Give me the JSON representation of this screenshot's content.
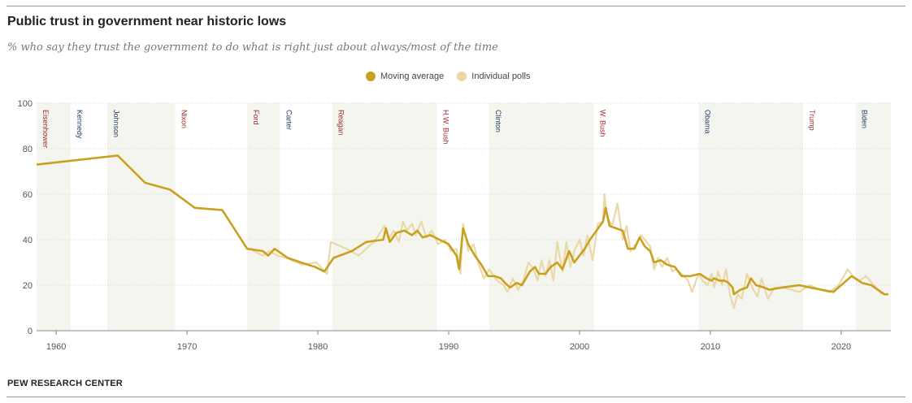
{
  "title": "Public trust in government near historic lows",
  "subtitle": "% who say they trust the government to do what is right just about always/most of the time",
  "source": "PEW RESEARCH CENTER",
  "colors": {
    "moving_average": "#C9A020",
    "individual_polls": "#EAD9A8",
    "shade": "#F5F5EF",
    "republican": "#A3282C",
    "democrat": "#1F3A5F"
  },
  "legend": {
    "moving_average": "Moving average",
    "individual_polls": "Individual polls"
  },
  "chart_data": {
    "type": "line",
    "xlim": [
      1958.5,
      2023.8
    ],
    "ylim": [
      0,
      100
    ],
    "yticks": [
      0,
      20,
      40,
      60,
      80,
      100
    ],
    "xticks": [
      1960,
      1970,
      1980,
      1990,
      2000,
      2010,
      2020
    ],
    "grid": true,
    "legend_placement": "top-center",
    "presidents": [
      {
        "name": "Eisenhower",
        "start": 1958.5,
        "end": 1961.1,
        "party": "R",
        "shaded": true
      },
      {
        "name": "Kennedy",
        "start": 1961.1,
        "end": 1963.9,
        "party": "D",
        "shaded": false
      },
      {
        "name": "Johnson",
        "start": 1963.9,
        "end": 1969.1,
        "party": "D",
        "shaded": true
      },
      {
        "name": "Nixon",
        "start": 1969.1,
        "end": 1974.6,
        "party": "R",
        "shaded": false
      },
      {
        "name": "Ford",
        "start": 1974.6,
        "end": 1977.1,
        "party": "R",
        "shaded": true
      },
      {
        "name": "Carter",
        "start": 1977.1,
        "end": 1981.1,
        "party": "D",
        "shaded": false
      },
      {
        "name": "Reagan",
        "start": 1981.1,
        "end": 1989.1,
        "party": "R",
        "shaded": true
      },
      {
        "name": "H.W. Bush",
        "start": 1989.1,
        "end": 1993.1,
        "party": "R",
        "shaded": false
      },
      {
        "name": "Clinton",
        "start": 1993.1,
        "end": 2001.1,
        "party": "D",
        "shaded": true
      },
      {
        "name": "W. Bush",
        "start": 2001.1,
        "end": 2009.1,
        "party": "R",
        "shaded": false
      },
      {
        "name": "Obama",
        "start": 2009.1,
        "end": 2017.1,
        "party": "D",
        "shaded": true
      },
      {
        "name": "Trump",
        "start": 2017.1,
        "end": 2021.1,
        "party": "R",
        "shaded": false
      },
      {
        "name": "Biden",
        "start": 2021.1,
        "end": 2023.8,
        "party": "D",
        "shaded": true
      }
    ],
    "series": [
      {
        "name": "Moving average",
        "points": [
          [
            1958.5,
            73
          ],
          [
            1964.7,
            77
          ],
          [
            1966.8,
            65
          ],
          [
            1968.7,
            62
          ],
          [
            1970.6,
            54
          ],
          [
            1972.7,
            53
          ],
          [
            1974.6,
            36
          ],
          [
            1975.8,
            35
          ],
          [
            1976.2,
            33
          ],
          [
            1976.7,
            36
          ],
          [
            1977.7,
            32
          ],
          [
            1978.7,
            30
          ],
          [
            1979.8,
            28
          ],
          [
            1980.5,
            26
          ],
          [
            1981.2,
            32
          ],
          [
            1982.6,
            35
          ],
          [
            1983.7,
            39
          ],
          [
            1985.0,
            40
          ],
          [
            1985.2,
            45
          ],
          [
            1985.5,
            39
          ],
          [
            1986.0,
            43
          ],
          [
            1986.6,
            44
          ],
          [
            1987.2,
            42
          ],
          [
            1987.6,
            44
          ],
          [
            1988.0,
            41
          ],
          [
            1988.6,
            42
          ],
          [
            1989.3,
            40
          ],
          [
            1990.0,
            38
          ],
          [
            1990.6,
            33
          ],
          [
            1990.8,
            27
          ],
          [
            1991.1,
            45
          ],
          [
            1991.5,
            38
          ],
          [
            1992.0,
            33
          ],
          [
            1992.5,
            29
          ],
          [
            1993.0,
            24
          ],
          [
            1993.5,
            24
          ],
          [
            1994.0,
            23
          ],
          [
            1994.3,
            21
          ],
          [
            1994.7,
            19
          ],
          [
            1995.2,
            21
          ],
          [
            1995.6,
            20
          ],
          [
            1996.2,
            26
          ],
          [
            1996.6,
            28
          ],
          [
            1996.9,
            25
          ],
          [
            1997.4,
            25
          ],
          [
            1997.8,
            28
          ],
          [
            1998.3,
            30
          ],
          [
            1998.7,
            27
          ],
          [
            1999.2,
            35
          ],
          [
            1999.6,
            30
          ],
          [
            2000.0,
            33
          ],
          [
            2000.4,
            36
          ],
          [
            2000.8,
            40
          ],
          [
            2001.3,
            44
          ],
          [
            2001.8,
            48
          ],
          [
            2002.0,
            54
          ],
          [
            2002.3,
            46
          ],
          [
            2002.8,
            45
          ],
          [
            2003.3,
            44
          ],
          [
            2003.7,
            36
          ],
          [
            2004.2,
            36
          ],
          [
            2004.6,
            41
          ],
          [
            2005.0,
            37
          ],
          [
            2005.4,
            35
          ],
          [
            2005.7,
            30
          ],
          [
            2006.2,
            31
          ],
          [
            2006.7,
            29
          ],
          [
            2007.3,
            28
          ],
          [
            2007.8,
            24
          ],
          [
            2008.5,
            24
          ],
          [
            2009.2,
            25
          ],
          [
            2009.7,
            23
          ],
          [
            2010.1,
            22
          ],
          [
            2010.3,
            23
          ],
          [
            2010.7,
            22
          ],
          [
            2011.1,
            22
          ],
          [
            2011.4,
            21
          ],
          [
            2011.7,
            19
          ],
          [
            2011.8,
            16
          ],
          [
            2012.3,
            18
          ],
          [
            2012.8,
            19
          ],
          [
            2013.1,
            23
          ],
          [
            2013.5,
            20
          ],
          [
            2014.1,
            19
          ],
          [
            2014.5,
            18
          ],
          [
            2015.5,
            19
          ],
          [
            2016.8,
            20
          ],
          [
            2017.6,
            19
          ],
          [
            2018.5,
            18
          ],
          [
            2019.4,
            17
          ],
          [
            2020.2,
            21
          ],
          [
            2020.8,
            24
          ],
          [
            2021.6,
            21
          ],
          [
            2022.3,
            20
          ],
          [
            2023.3,
            16
          ],
          [
            2023.6,
            16
          ]
        ]
      },
      {
        "name": "Individual polls",
        "points": [
          [
            1974.8,
            36
          ],
          [
            1975.8,
            33
          ],
          [
            1976.3,
            35
          ],
          [
            1976.9,
            33
          ],
          [
            1977.6,
            32
          ],
          [
            1978.8,
            29
          ],
          [
            1979.9,
            30
          ],
          [
            1980.7,
            25
          ],
          [
            1981.0,
            39
          ],
          [
            1982.2,
            36
          ],
          [
            1983.1,
            33
          ],
          [
            1984.3,
            39
          ],
          [
            1985.1,
            46
          ],
          [
            1985.4,
            40
          ],
          [
            1985.8,
            44
          ],
          [
            1986.2,
            39
          ],
          [
            1986.5,
            48
          ],
          [
            1986.8,
            44
          ],
          [
            1987.2,
            47
          ],
          [
            1987.5,
            42
          ],
          [
            1987.9,
            48
          ],
          [
            1988.3,
            41
          ],
          [
            1988.7,
            44
          ],
          [
            1989.2,
            38
          ],
          [
            1989.7,
            40
          ],
          [
            1990.2,
            35
          ],
          [
            1990.6,
            36
          ],
          [
            1990.9,
            25
          ],
          [
            1991.1,
            47
          ],
          [
            1991.5,
            35
          ],
          [
            1991.9,
            38
          ],
          [
            1992.3,
            29
          ],
          [
            1992.7,
            23
          ],
          [
            1993.1,
            27
          ],
          [
            1993.7,
            22
          ],
          [
            1994.2,
            20
          ],
          [
            1994.5,
            17
          ],
          [
            1994.9,
            23
          ],
          [
            1995.3,
            18
          ],
          [
            1995.7,
            22
          ],
          [
            1996.1,
            30
          ],
          [
            1996.5,
            27
          ],
          [
            1996.8,
            22
          ],
          [
            1997.1,
            31
          ],
          [
            1997.4,
            24
          ],
          [
            1997.7,
            31
          ],
          [
            1998.0,
            22
          ],
          [
            1998.3,
            39
          ],
          [
            1998.7,
            26
          ],
          [
            1999.0,
            39
          ],
          [
            1999.3,
            28
          ],
          [
            1999.6,
            35
          ],
          [
            2000.0,
            40
          ],
          [
            2000.3,
            33
          ],
          [
            2000.6,
            42
          ],
          [
            2001.0,
            31
          ],
          [
            2001.4,
            47
          ],
          [
            2001.8,
            48
          ],
          [
            2001.9,
            60
          ],
          [
            2002.1,
            50
          ],
          [
            2002.5,
            46
          ],
          [
            2002.9,
            56
          ],
          [
            2003.3,
            40
          ],
          [
            2003.6,
            46
          ],
          [
            2003.9,
            35
          ],
          [
            2004.3,
            38
          ],
          [
            2004.7,
            42
          ],
          [
            2005.0,
            40
          ],
          [
            2005.4,
            37
          ],
          [
            2005.7,
            27
          ],
          [
            2006.0,
            32
          ],
          [
            2006.3,
            28
          ],
          [
            2006.7,
            32
          ],
          [
            2007.1,
            26
          ],
          [
            2007.4,
            27
          ],
          [
            2007.8,
            25
          ],
          [
            2008.3,
            22
          ],
          [
            2008.6,
            17
          ],
          [
            2009.1,
            25
          ],
          [
            2009.4,
            22
          ],
          [
            2009.8,
            20
          ],
          [
            2010.1,
            25
          ],
          [
            2010.3,
            19
          ],
          [
            2010.6,
            26
          ],
          [
            2010.9,
            20
          ],
          [
            2011.2,
            27
          ],
          [
            2011.5,
            16
          ],
          [
            2011.8,
            10
          ],
          [
            2012.1,
            16
          ],
          [
            2012.4,
            14
          ],
          [
            2012.8,
            25
          ],
          [
            2013.2,
            19
          ],
          [
            2013.6,
            15
          ],
          [
            2013.9,
            23
          ],
          [
            2014.4,
            14
          ],
          [
            2014.9,
            19
          ],
          [
            2015.6,
            19
          ],
          [
            2016.8,
            17
          ],
          [
            2017.6,
            20
          ],
          [
            2018.4,
            18
          ],
          [
            2019.1,
            17
          ],
          [
            2019.8,
            20
          ],
          [
            2020.5,
            27
          ],
          [
            2020.9,
            24
          ],
          [
            2021.4,
            22
          ],
          [
            2021.9,
            24
          ],
          [
            2022.5,
            20
          ],
          [
            2023.1,
            16
          ]
        ]
      }
    ]
  }
}
